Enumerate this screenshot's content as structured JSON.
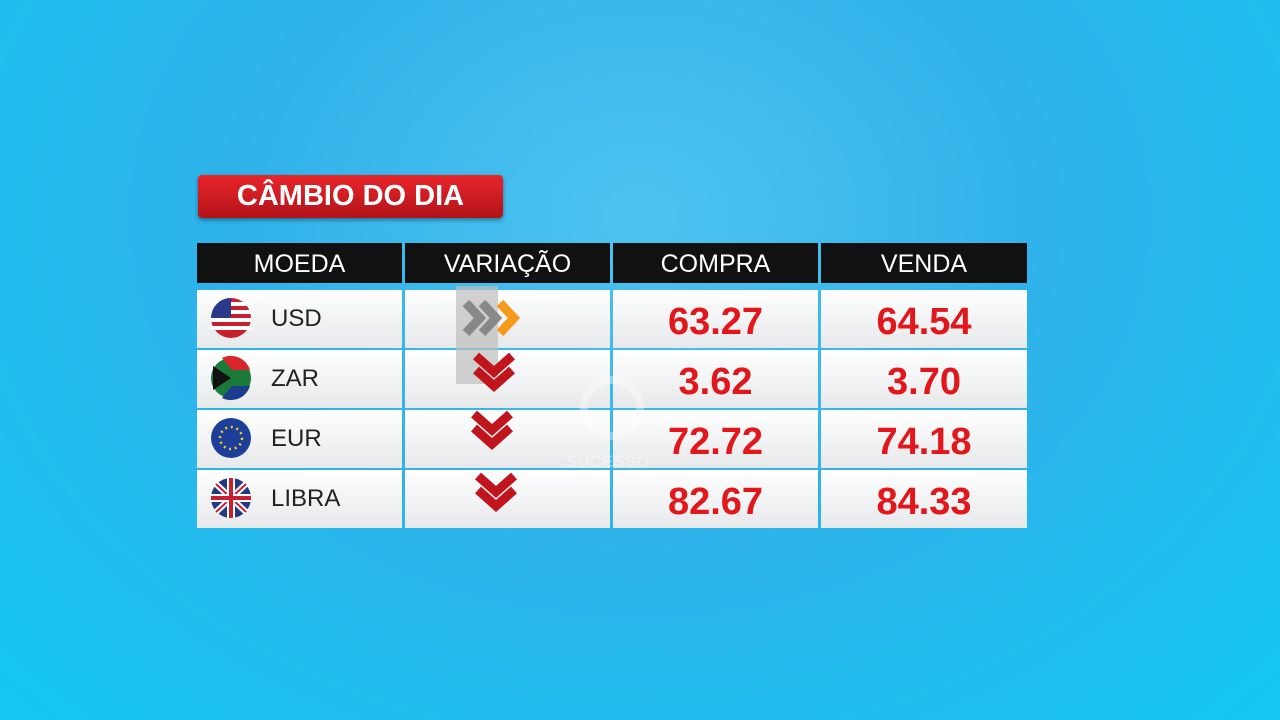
{
  "header": {
    "title": "CÂMBIO DO DIA"
  },
  "table": {
    "columns": [
      "MOEDA",
      "VARIAÇÃO",
      "COMPRA",
      "VENDA"
    ],
    "rows": [
      [
        "USD",
        "63.27",
        "64.54"
      ],
      [
        "ZAR",
        "3.62",
        "3.70"
      ],
      [
        "EUR",
        "72.72",
        "74.18"
      ],
      [
        "LIBRA",
        "82.67",
        "84.33"
      ]
    ]
  },
  "watermark": "SUCESSO"
}
